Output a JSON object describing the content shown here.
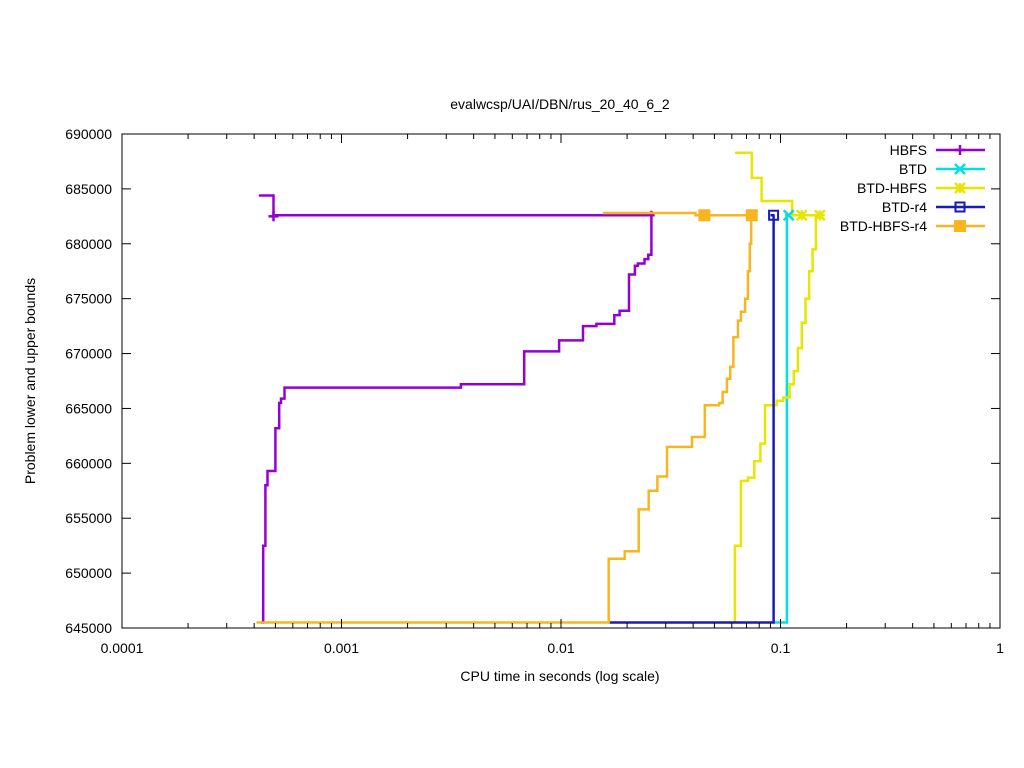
{
  "chart_data": {
    "type": "line",
    "title": "evalwcsp/UAI/DBN/rus_20_40_6_2",
    "xlabel": "CPU time in seconds (log scale)",
    "ylabel": "Problem lower and upper bounds",
    "x_scale": "log",
    "xlim": [
      0.0001,
      1
    ],
    "ylim": [
      645000,
      690000
    ],
    "x_ticks": [
      {
        "value": 0.0001,
        "label": "0.0001"
      },
      {
        "value": 0.001,
        "label": "0.001"
      },
      {
        "value": 0.01,
        "label": "0.01"
      },
      {
        "value": 0.1,
        "label": "0.1"
      },
      {
        "value": 1,
        "label": "1"
      }
    ],
    "y_ticks": [
      {
        "value": 645000,
        "label": "645000"
      },
      {
        "value": 650000,
        "label": "650000"
      },
      {
        "value": 655000,
        "label": "655000"
      },
      {
        "value": 660000,
        "label": "660000"
      },
      {
        "value": 665000,
        "label": "665000"
      },
      {
        "value": 670000,
        "label": "670000"
      },
      {
        "value": 675000,
        "label": "675000"
      },
      {
        "value": 680000,
        "label": "680000"
      },
      {
        "value": 685000,
        "label": "685000"
      },
      {
        "value": 690000,
        "label": "690000"
      }
    ],
    "grid": false,
    "legend_position": "top-right",
    "series": [
      {
        "name": "HBFS",
        "color": "#9400d3",
        "marker": "plus",
        "marker_points": [
          [
            0.00049,
            682500
          ]
        ],
        "upper": [
          [
            0.00042,
            684400
          ],
          [
            0.00049,
            684400
          ],
          [
            0.00049,
            682600
          ],
          [
            0.0267,
            682600
          ]
        ],
        "lower": [
          [
            0.00043,
            645500
          ],
          [
            0.00044,
            645500
          ],
          [
            0.00044,
            652500
          ],
          [
            0.00045,
            652500
          ],
          [
            0.00045,
            658000
          ],
          [
            0.00046,
            658000
          ],
          [
            0.00046,
            659300
          ],
          [
            0.0005,
            659300
          ],
          [
            0.0005,
            663200
          ],
          [
            0.00052,
            663200
          ],
          [
            0.00052,
            665500
          ],
          [
            0.00053,
            665500
          ],
          [
            0.00053,
            665900
          ],
          [
            0.00055,
            665900
          ],
          [
            0.00055,
            666900
          ],
          [
            0.0035,
            666900
          ],
          [
            0.0035,
            667200
          ],
          [
            0.0068,
            667200
          ],
          [
            0.0068,
            670200
          ],
          [
            0.0098,
            670200
          ],
          [
            0.0098,
            671200
          ],
          [
            0.0126,
            671200
          ],
          [
            0.0126,
            672500
          ],
          [
            0.0145,
            672500
          ],
          [
            0.0145,
            672700
          ],
          [
            0.0175,
            672700
          ],
          [
            0.0175,
            673500
          ],
          [
            0.0185,
            673500
          ],
          [
            0.0185,
            673900
          ],
          [
            0.0204,
            673900
          ],
          [
            0.0204,
            677200
          ],
          [
            0.0217,
            677200
          ],
          [
            0.0217,
            678000
          ],
          [
            0.0224,
            678000
          ],
          [
            0.0224,
            678200
          ],
          [
            0.024,
            678200
          ],
          [
            0.024,
            678600
          ],
          [
            0.025,
            678600
          ],
          [
            0.025,
            679000
          ],
          [
            0.0258,
            679000
          ],
          [
            0.0258,
            683000
          ]
        ]
      },
      {
        "name": "BTD",
        "color": "#00e0e0",
        "marker": "cross",
        "marker_points": [
          [
            0.109,
            682600
          ]
        ],
        "upper": [
          [
            0.105,
            682600
          ],
          [
            0.109,
            682600
          ]
        ],
        "lower": [
          [
            0.093,
            645500
          ],
          [
            0.107,
            645500
          ],
          [
            0.107,
            682600
          ]
        ]
      },
      {
        "name": "BTD-HBFS",
        "color": "#e6e600",
        "marker": "star",
        "marker_points": [
          [
            0.125,
            682600
          ],
          [
            0.151,
            682600
          ]
        ],
        "upper": [
          [
            0.062,
            688300
          ],
          [
            0.074,
            688300
          ],
          [
            0.074,
            686000
          ],
          [
            0.082,
            686000
          ],
          [
            0.082,
            683900
          ],
          [
            0.113,
            683900
          ],
          [
            0.113,
            682600
          ],
          [
            0.151,
            682600
          ]
        ],
        "lower": [
          [
            0.062,
            645500
          ],
          [
            0.062,
            652500
          ],
          [
            0.066,
            652500
          ],
          [
            0.066,
            658400
          ],
          [
            0.071,
            658400
          ],
          [
            0.071,
            658700
          ],
          [
            0.076,
            658700
          ],
          [
            0.076,
            660200
          ],
          [
            0.081,
            660200
          ],
          [
            0.081,
            661800
          ],
          [
            0.085,
            661800
          ],
          [
            0.085,
            665300
          ],
          [
            0.096,
            665300
          ],
          [
            0.096,
            665700
          ],
          [
            0.103,
            665700
          ],
          [
            0.103,
            666000
          ],
          [
            0.11,
            666000
          ],
          [
            0.11,
            667200
          ],
          [
            0.115,
            667200
          ],
          [
            0.115,
            668400
          ],
          [
            0.12,
            668400
          ],
          [
            0.12,
            670500
          ],
          [
            0.125,
            670500
          ],
          [
            0.125,
            672800
          ],
          [
            0.13,
            672800
          ],
          [
            0.13,
            675000
          ],
          [
            0.135,
            675000
          ],
          [
            0.135,
            677500
          ],
          [
            0.14,
            677500
          ],
          [
            0.14,
            679500
          ],
          [
            0.145,
            679500
          ],
          [
            0.145,
            682600
          ]
        ]
      },
      {
        "name": "BTD-r4",
        "color": "#1a1ab8",
        "marker": "square",
        "marker_points": [
          [
            0.093,
            682600
          ]
        ],
        "upper": [
          [
            0.09,
            682600
          ],
          [
            0.094,
            682600
          ]
        ],
        "lower": [
          [
            0.0165,
            645500
          ],
          [
            0.093,
            645500
          ],
          [
            0.093,
            682600
          ]
        ]
      },
      {
        "name": "BTD-HBFS-r4",
        "color": "#f7b620",
        "marker": "filled-square",
        "marker_points": [
          [
            0.045,
            682600
          ],
          [
            0.074,
            682600
          ]
        ],
        "upper": [
          [
            0.0155,
            682800
          ],
          [
            0.041,
            682800
          ],
          [
            0.041,
            682600
          ],
          [
            0.074,
            682600
          ]
        ],
        "lower": [
          [
            0.00041,
            645500
          ],
          [
            0.0165,
            645500
          ],
          [
            0.0165,
            651300
          ],
          [
            0.0195,
            651300
          ],
          [
            0.0195,
            652000
          ],
          [
            0.0226,
            652000
          ],
          [
            0.0226,
            655800
          ],
          [
            0.0251,
            655800
          ],
          [
            0.0251,
            657500
          ],
          [
            0.0275,
            657500
          ],
          [
            0.0275,
            658800
          ],
          [
            0.0304,
            658800
          ],
          [
            0.0304,
            661500
          ],
          [
            0.0395,
            661500
          ],
          [
            0.0395,
            662400
          ],
          [
            0.0452,
            662400
          ],
          [
            0.0452,
            665300
          ],
          [
            0.0525,
            665300
          ],
          [
            0.0525,
            665500
          ],
          [
            0.0545,
            665500
          ],
          [
            0.0545,
            666500
          ],
          [
            0.057,
            666500
          ],
          [
            0.057,
            667700
          ],
          [
            0.059,
            667700
          ],
          [
            0.059,
            668800
          ],
          [
            0.061,
            668800
          ],
          [
            0.061,
            671500
          ],
          [
            0.064,
            671500
          ],
          [
            0.064,
            673000
          ],
          [
            0.066,
            673000
          ],
          [
            0.066,
            673800
          ],
          [
            0.069,
            673800
          ],
          [
            0.069,
            675000
          ],
          [
            0.071,
            675000
          ],
          [
            0.071,
            677500
          ],
          [
            0.0725,
            677500
          ],
          [
            0.0725,
            680000
          ],
          [
            0.0735,
            680000
          ],
          [
            0.0735,
            682600
          ]
        ]
      }
    ]
  }
}
